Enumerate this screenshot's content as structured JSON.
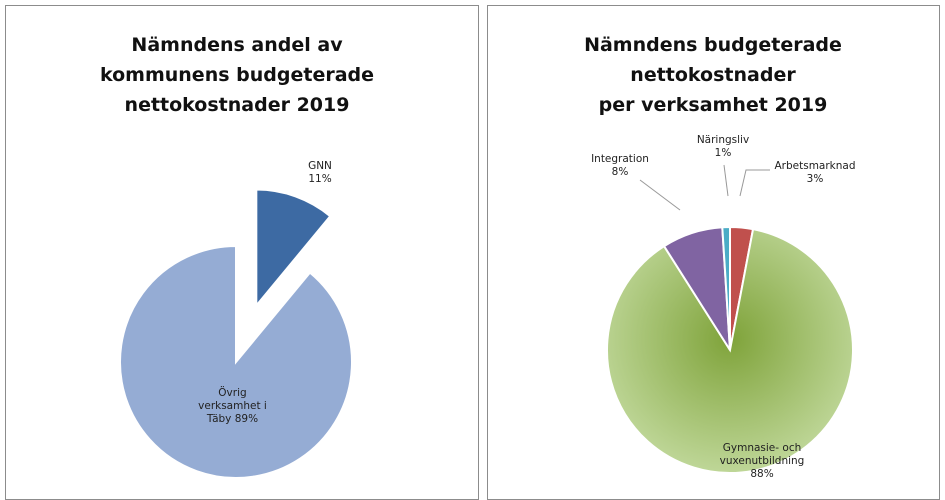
{
  "chart_data": [
    {
      "type": "pie",
      "title": [
        "Nämndens andel av",
        "kommunens budgeterade",
        "nettokostnader 2019"
      ],
      "categories": [
        "GNN",
        "Övrig verksamhet i Täby"
      ],
      "values": [
        11,
        89
      ],
      "value_labels": [
        "11%",
        "89%"
      ],
      "colors": [
        "#3d6aa3",
        "#95acd4"
      ],
      "exploded": [
        true,
        false
      ]
    },
    {
      "type": "pie",
      "title": [
        "Nämndens budgeterade",
        "nettokostnader",
        "per verksamhet 2019"
      ],
      "categories": [
        "Arbetsmarknad",
        "Gymnasie- och vuxenutbildning",
        "Integration",
        "Näringsliv"
      ],
      "values": [
        3,
        88,
        8,
        1
      ],
      "value_labels": [
        "3%",
        "88%",
        "8%",
        "1%"
      ],
      "colors": [
        "#c0504d",
        "#a6c66b",
        "#8064a2",
        "#4bacc6"
      ],
      "exploded": [
        false,
        false,
        false,
        false
      ]
    }
  ]
}
